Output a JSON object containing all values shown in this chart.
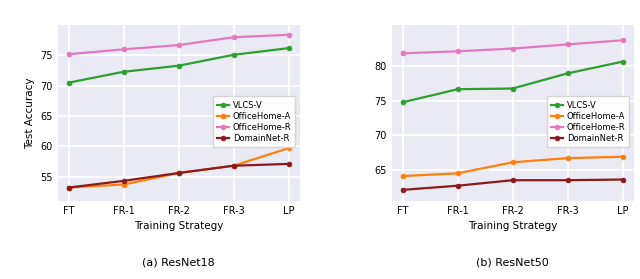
{
  "x_labels": [
    "FT",
    "FR-1",
    "FR-2",
    "FR-3",
    "LP"
  ],
  "subplot_titles": [
    "(a) ResNet18",
    "(b) ResNet50"
  ],
  "xlabel": "Training Strategy",
  "ylabel": "Test Accuracy",
  "legend_labels": [
    "VLCS-V",
    "OfficeHome-A",
    "OfficeHome-R",
    "DomainNet-R"
  ],
  "colors": [
    "#2ca02c",
    "#ff7f0e",
    "#e377c2",
    "#8b1a1a"
  ],
  "marker": "o",
  "resnet18": {
    "VLCS-V": [
      70.5,
      72.3,
      73.3,
      75.1,
      76.2
    ],
    "OfficeHome-A": [
      53.2,
      53.7,
      55.6,
      56.8,
      59.7
    ],
    "OfficeHome-R": [
      75.2,
      76.0,
      76.7,
      78.0,
      78.4
    ],
    "DomainNet-R": [
      53.2,
      54.3,
      55.6,
      56.8,
      57.1
    ]
  },
  "resnet50": {
    "VLCS-V": [
      74.8,
      76.7,
      76.8,
      79.0,
      80.7
    ],
    "OfficeHome-A": [
      64.1,
      64.5,
      66.1,
      66.7,
      66.9
    ],
    "OfficeHome-R": [
      81.9,
      82.2,
      82.6,
      83.2,
      83.8
    ],
    "DomainNet-R": [
      62.1,
      62.7,
      63.5,
      63.5,
      63.6
    ]
  },
  "resnet18_ylim": [
    51,
    80
  ],
  "resnet50_ylim": [
    60.5,
    86
  ],
  "resnet18_yticks": [
    55,
    60,
    65,
    70,
    75
  ],
  "resnet50_yticks": [
    65,
    70,
    75,
    80
  ],
  "bg_color": "#eaeaf4",
  "grid_color": "white",
  "fig_bg": "white"
}
